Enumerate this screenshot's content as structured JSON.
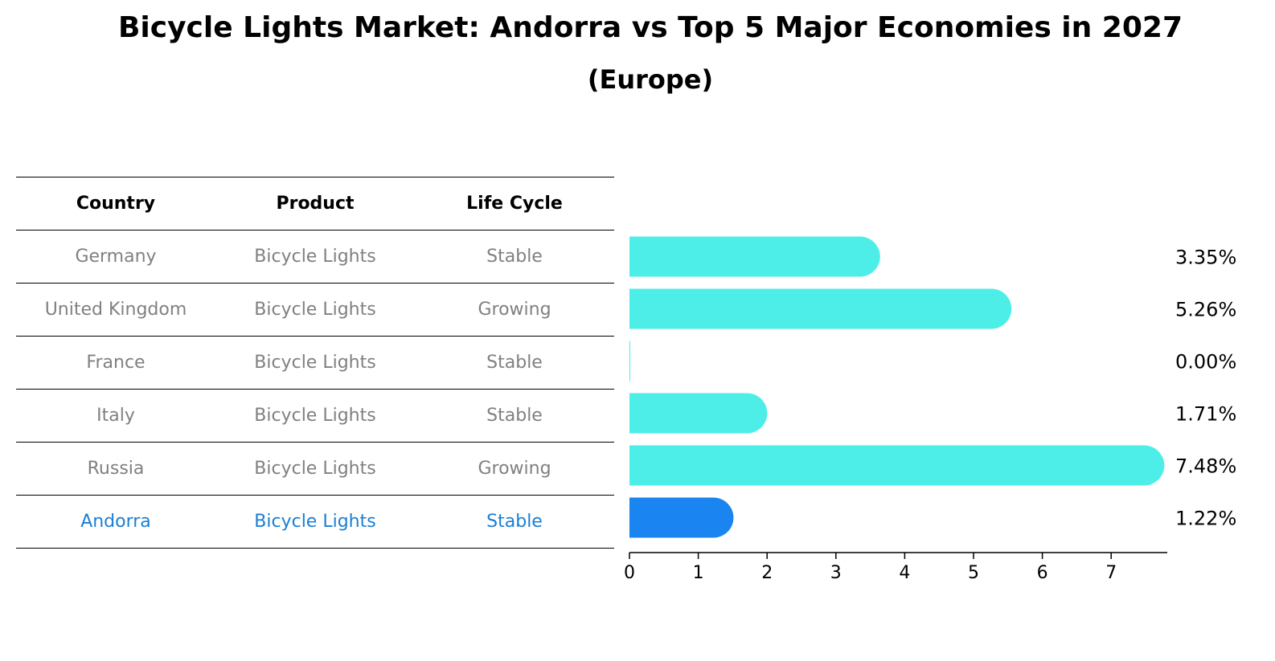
{
  "title": "Bicycle Lights Market: Andorra vs Top 5 Major Economies in 2027",
  "subtitle": "(Europe)",
  "table": {
    "headers": [
      "Country",
      "Product",
      "Life Cycle"
    ],
    "rows": [
      [
        "Germany",
        "Bicycle Lights",
        "Stable"
      ],
      [
        "United Kingdom",
        "Bicycle Lights",
        "Growing"
      ],
      [
        "France",
        "Bicycle Lights",
        "Stable"
      ],
      [
        "Italy",
        "Bicycle Lights",
        "Stable"
      ],
      [
        "Russia",
        "Bicycle Lights",
        "Growing"
      ],
      [
        "Andorra",
        "Bicycle Lights",
        "Stable"
      ]
    ]
  },
  "colors": {
    "bar": "#4eeee8",
    "highlight_bar": "#1a85f0",
    "highlight_text": "#1a7fd4",
    "muted_text": "#808080"
  },
  "chart_data": {
    "type": "bar",
    "orientation": "horizontal",
    "categories": [
      "Germany",
      "United Kingdom",
      "France",
      "Italy",
      "Russia",
      "Andorra"
    ],
    "values": [
      3.35,
      5.26,
      0.0,
      1.71,
      7.48,
      1.22
    ],
    "value_labels": [
      "3.35%",
      "5.26%",
      "0.00%",
      "1.71%",
      "7.48%",
      "1.22%"
    ],
    "highlight": "Andorra",
    "xticks": [
      0,
      1,
      2,
      3,
      4,
      5,
      6,
      7
    ],
    "xlim": [
      0,
      7.85
    ],
    "title": "Bicycle Lights Market: Andorra vs Top 5 Major Economies in 2027",
    "subtitle": "(Europe)",
    "xlabel": "",
    "ylabel": ""
  }
}
